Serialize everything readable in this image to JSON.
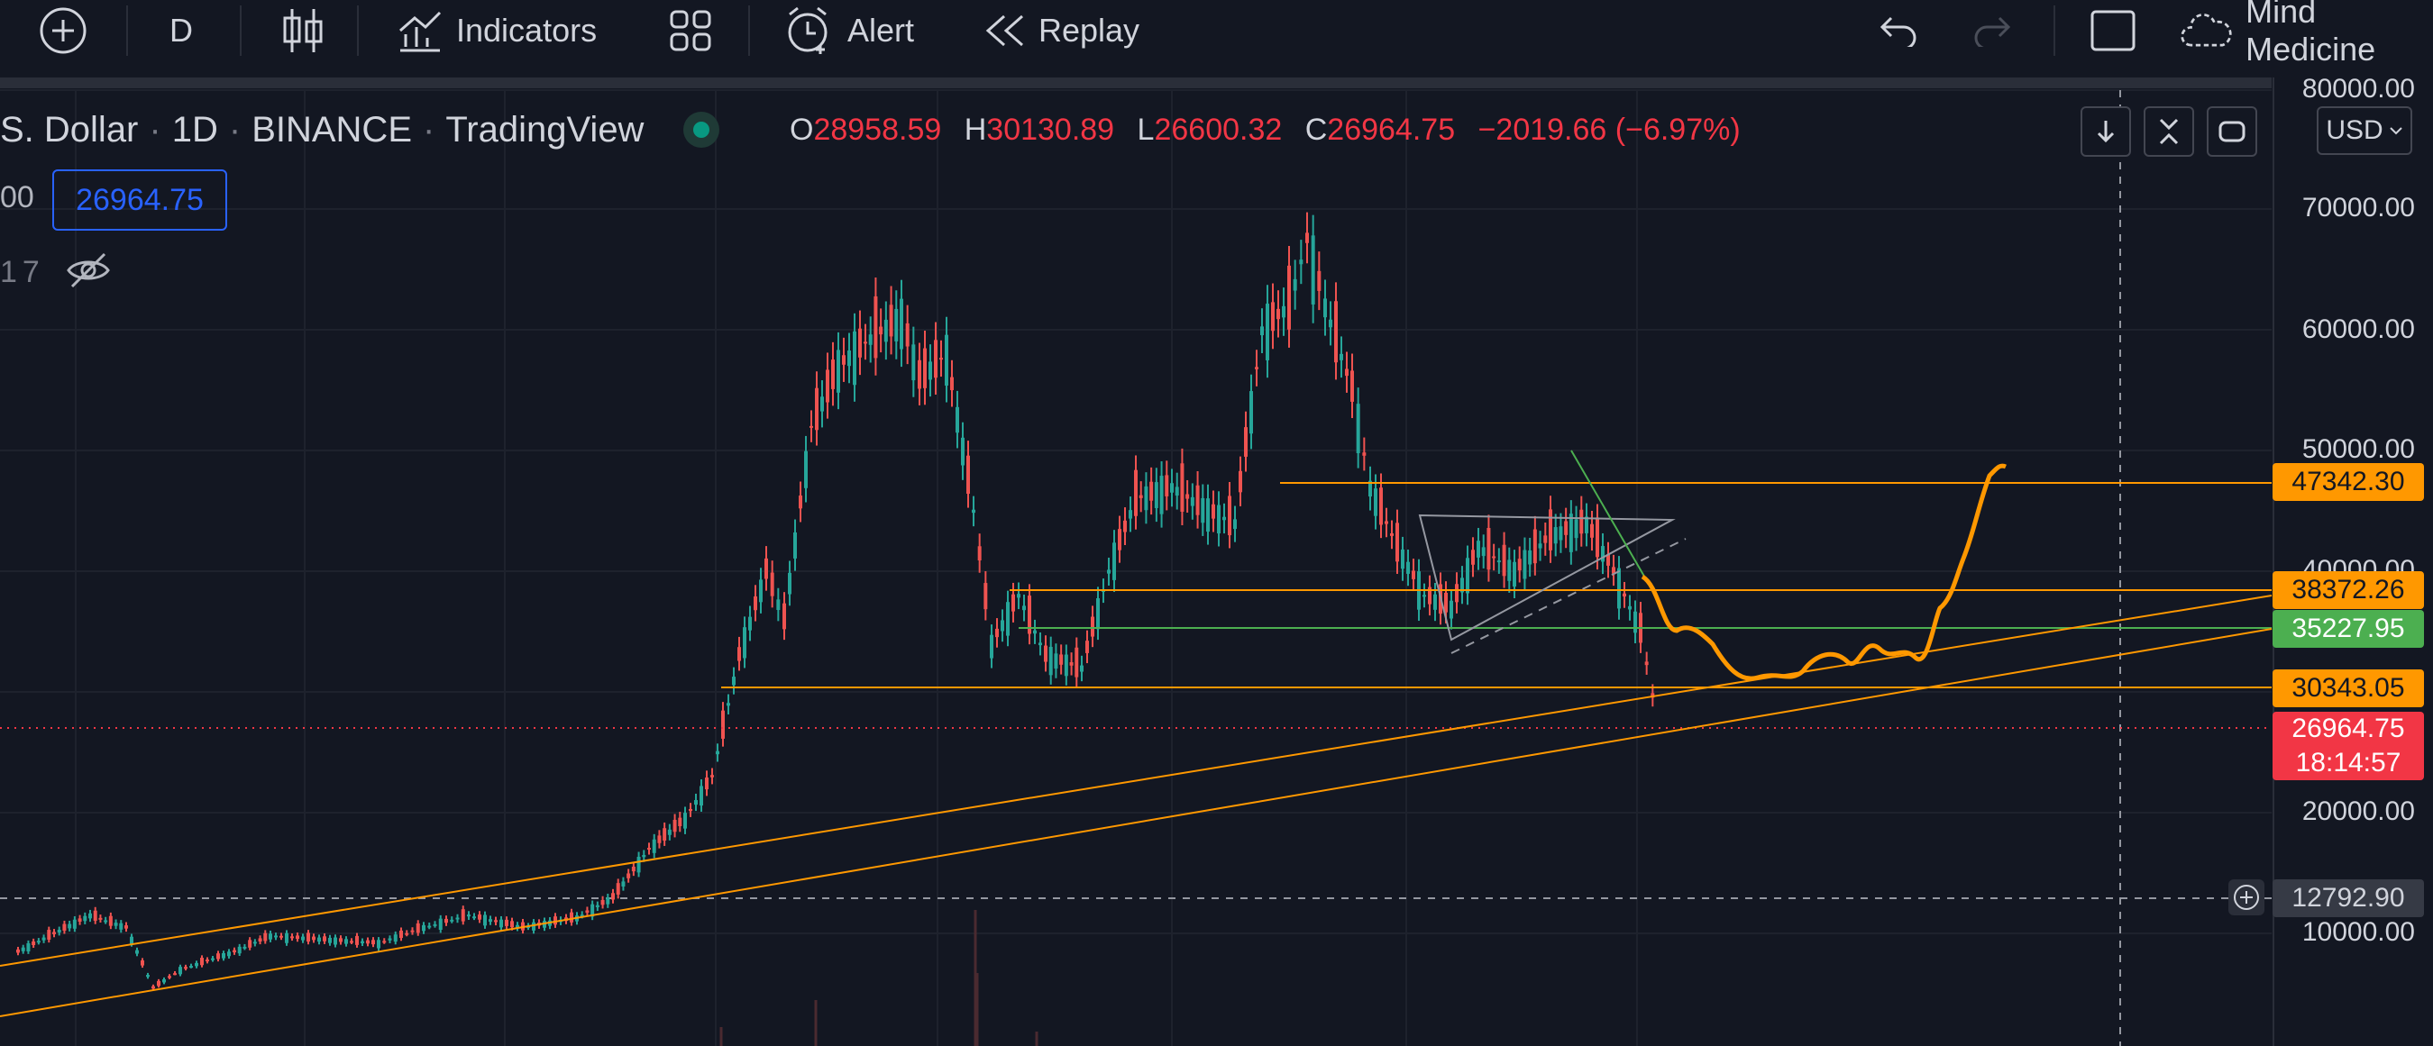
{
  "toolbar": {
    "interval": "D",
    "indicators_label": "Indicators",
    "alert_label": "Alert",
    "replay_label": "Replay",
    "layout_name": "Mind Medicine"
  },
  "legend": {
    "symbol_fragment": "S. Dollar",
    "interval": "1D",
    "exchange": "BINANCE",
    "source": "TradingView",
    "open_key": "O",
    "open": "28958.59",
    "high_key": "H",
    "high": "30130.89",
    "low_key": "L",
    "low": "26600.32",
    "close_key": "C",
    "close": "26964.75",
    "change": "−2019.66 (−6.97%)",
    "current_price_box": "26964.75",
    "row2_prefix": "00",
    "row3_prefix": "17"
  },
  "currency": "USD",
  "price_axis": {
    "ticks": [
      "80000.00",
      "70000.00",
      "60000.00",
      "50000.00",
      "40000.00",
      "20000.00",
      "10000.00"
    ]
  },
  "price_tags": [
    {
      "label": "47342.30",
      "color": "#ff9800"
    },
    {
      "label": "38372.26",
      "color": "#ff9800"
    },
    {
      "label": "35227.95",
      "color": "#4caf50"
    },
    {
      "label": "30343.05",
      "color": "#ff9800"
    },
    {
      "label": "26964.75",
      "color": "#f23645"
    },
    {
      "label": "18:14:57",
      "color": "#f23645"
    }
  ],
  "crosshair_price": "12792.90",
  "colors": {
    "background": "#131722",
    "up": "#26a69a",
    "down": "#ef5350",
    "drawing_orange": "#ff9800",
    "drawing_green": "#4caf50",
    "accent_blue": "#2962ff"
  }
}
